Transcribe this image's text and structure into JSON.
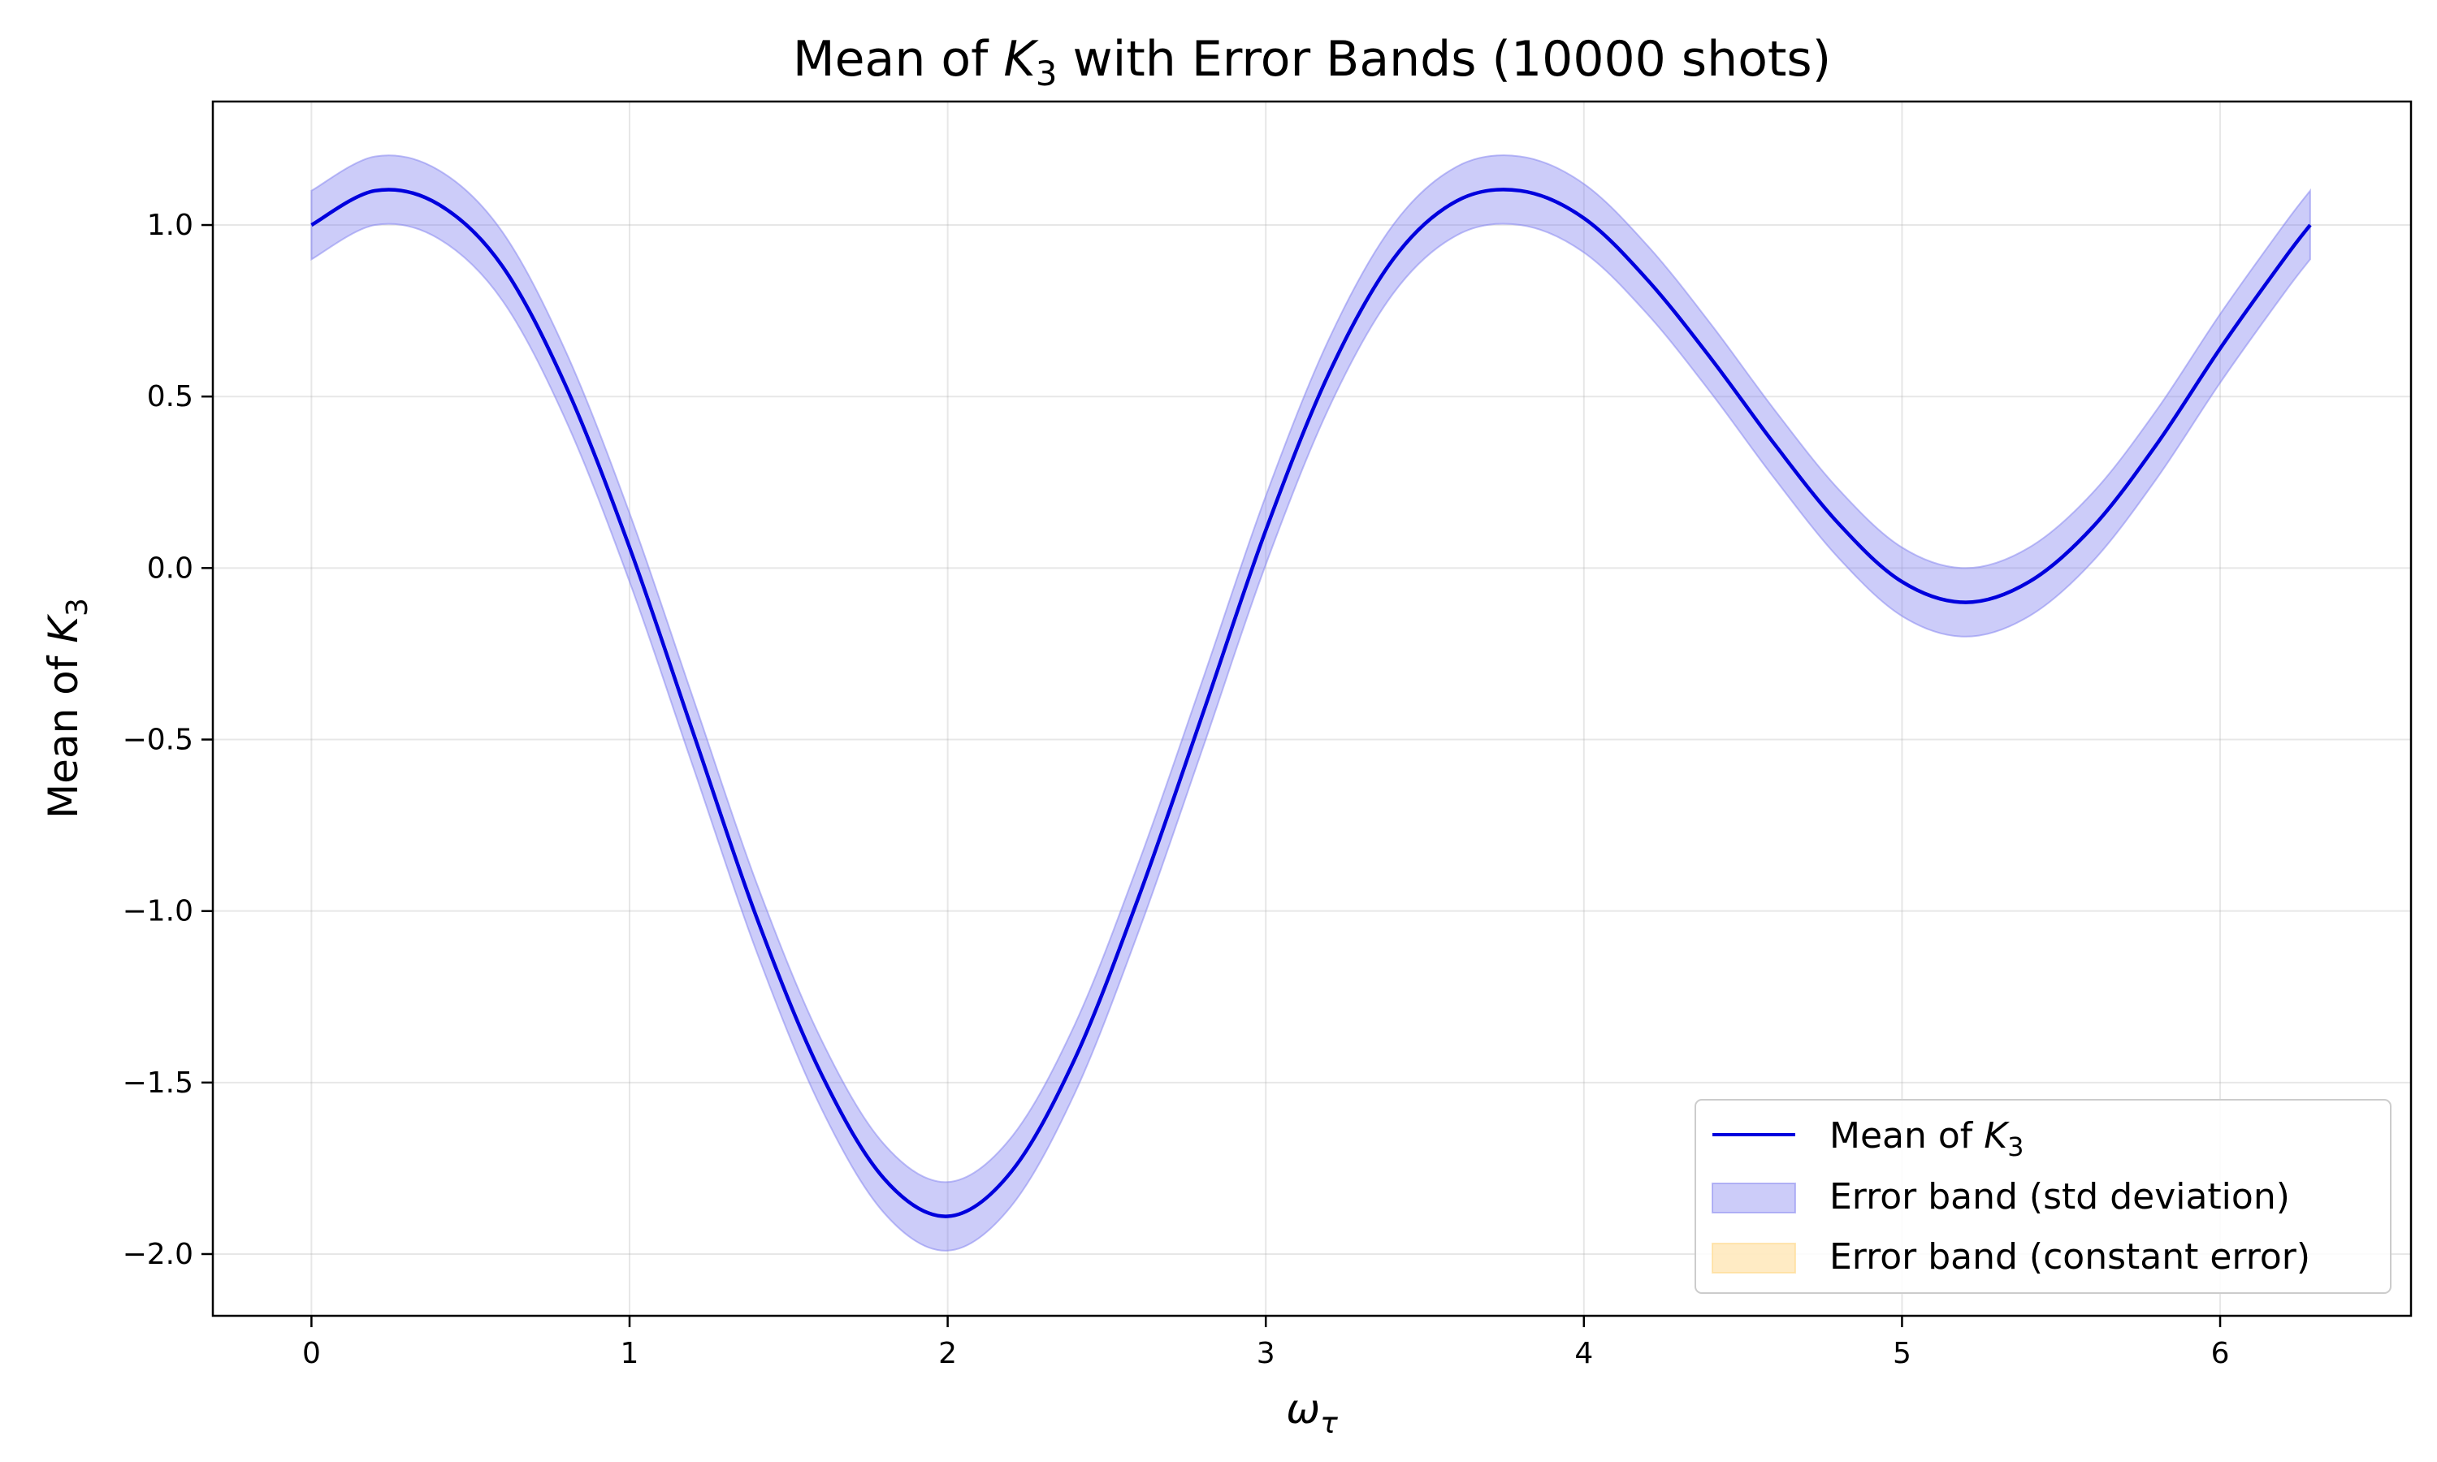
{
  "chart_data": {
    "type": "line",
    "title": {
      "prefix": "Mean of ",
      "sym": "K",
      "sub": "3",
      "suffix": " with Error Bands (10000 shots)"
    },
    "xlabel": {
      "sym": "ω",
      "sub": "τ"
    },
    "ylabel": {
      "prefix": "Mean of ",
      "sym": "K",
      "sub": "3"
    },
    "xlim": [
      -0.31,
      6.6
    ],
    "ylim": [
      -2.18,
      1.36
    ],
    "xticks": [
      0,
      1,
      2,
      3,
      4,
      5,
      6
    ],
    "xtick_labels": [
      "0",
      "1",
      "2",
      "3",
      "4",
      "5",
      "6"
    ],
    "yticks": [
      1.0,
      0.5,
      0.0,
      -0.5,
      -1.0,
      -1.5,
      -2.0
    ],
    "ytick_labels": [
      "1.0",
      "0.5",
      "0.0",
      "−0.5",
      "−1.0",
      "−1.5",
      "−2.0"
    ],
    "grid": true,
    "legend_placement": "lower-right",
    "x": [
      0,
      0.2,
      0.4,
      0.6,
      0.8,
      1.0,
      1.2,
      1.4,
      1.6,
      1.8,
      2.0,
      2.2,
      2.4,
      2.6,
      2.8,
      3.0,
      3.2,
      3.4,
      3.6,
      3.8,
      4.0,
      4.2,
      4.4,
      4.6,
      4.8,
      5.0,
      5.2,
      5.4,
      5.6,
      5.8,
      6.0,
      6.2,
      6.283
    ],
    "series": [
      {
        "name": {
          "prefix": "Mean of ",
          "sym": "K",
          "sub": "3"
        },
        "kind": "line",
        "color": "#0000dd",
        "values": [
          1.0,
          1.1,
          1.06,
          0.88,
          0.53,
          0.06,
          -0.48,
          -1.02,
          -1.47,
          -1.78,
          -1.89,
          -1.76,
          -1.43,
          -0.96,
          -0.43,
          0.11,
          0.57,
          0.9,
          1.07,
          1.1,
          1.02,
          0.84,
          0.61,
          0.36,
          0.13,
          -0.04,
          -0.1,
          -0.04,
          0.12,
          0.36,
          0.64,
          0.9,
          1.0
        ]
      },
      {
        "name": "Error band (std deviation)",
        "kind": "band",
        "color": "#8080f0",
        "half_width": 0.1
      },
      {
        "name": "Error band (constant error)",
        "kind": "band",
        "color": "#ffd88a",
        "half_width": 0.0
      }
    ]
  }
}
